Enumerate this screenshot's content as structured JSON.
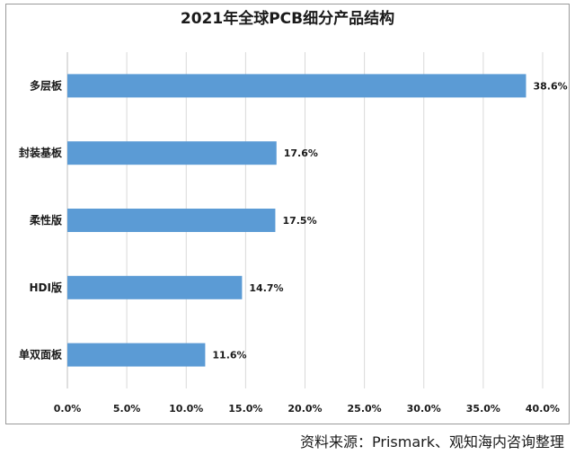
{
  "chart_data": {
    "type": "bar",
    "orientation": "horizontal",
    "title": "2021年全球PCB细分产品结构",
    "categories": [
      "多层板",
      "封装基板",
      "柔性版",
      "HDI版",
      "单双面板"
    ],
    "values": [
      38.6,
      17.6,
      17.5,
      14.7,
      11.6
    ],
    "value_labels": [
      "38.6%",
      "17.6%",
      "17.5%",
      "14.7%",
      "11.6%"
    ],
    "x_ticks": [
      "0.0%",
      "5.0%",
      "10.0%",
      "15.0%",
      "20.0%",
      "25.0%",
      "30.0%",
      "35.0%",
      "40.0%"
    ],
    "xlim": [
      0,
      40
    ],
    "grid": true,
    "bar_color": "#5b9bd5"
  },
  "source": "资料来源：Prismark、观知海内咨询整理"
}
